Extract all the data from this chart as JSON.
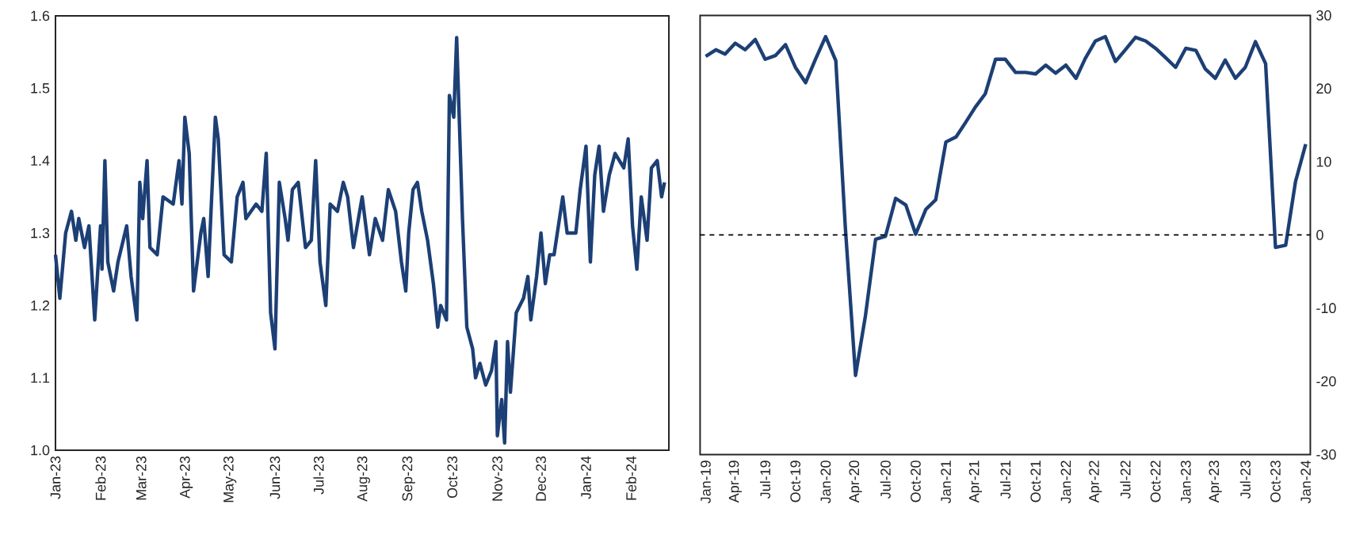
{
  "chart_data": [
    {
      "type": "line",
      "color": "#1c3f75",
      "x": [
        "2023-01-01",
        "2023-01-04",
        "2023-01-08",
        "2023-01-12",
        "2023-01-15",
        "2023-01-17",
        "2023-01-21",
        "2023-01-24",
        "2023-01-28",
        "2023-02-01",
        "2023-02-02",
        "2023-02-04",
        "2023-02-06",
        "2023-02-10",
        "2023-02-13",
        "2023-02-19",
        "2023-02-22",
        "2023-02-26",
        "2023-02-28",
        "2023-03-02",
        "2023-03-05",
        "2023-03-07",
        "2023-03-12",
        "2023-03-16",
        "2023-03-23",
        "2023-03-27",
        "2023-03-29",
        "2023-03-31",
        "2023-04-03",
        "2023-04-06",
        "2023-04-11",
        "2023-04-13",
        "2023-04-16",
        "2023-04-18",
        "2023-04-21",
        "2023-04-23",
        "2023-04-27",
        "2023-05-02",
        "2023-05-06",
        "2023-05-10",
        "2023-05-12",
        "2023-05-19",
        "2023-05-23",
        "2023-05-26",
        "2023-05-29",
        "2023-06-01",
        "2023-06-04",
        "2023-06-08",
        "2023-06-10",
        "2023-06-13",
        "2023-06-17",
        "2023-06-22",
        "2023-06-26",
        "2023-06-29",
        "2023-07-02",
        "2023-07-06",
        "2023-07-09",
        "2023-07-14",
        "2023-07-18",
        "2023-07-21",
        "2023-07-25",
        "2023-07-31",
        "2023-08-05",
        "2023-08-09",
        "2023-08-14",
        "2023-08-18",
        "2023-08-23",
        "2023-08-27",
        "2023-08-30",
        "2023-09-01",
        "2023-09-04",
        "2023-09-07",
        "2023-09-10",
        "2023-09-14",
        "2023-09-18",
        "2023-09-21",
        "2023-09-23",
        "2023-09-27",
        "2023-09-29",
        "2023-10-02",
        "2023-10-04",
        "2023-10-08",
        "2023-10-11",
        "2023-10-15",
        "2023-10-17",
        "2023-10-20",
        "2023-10-24",
        "2023-10-28",
        "2023-10-31",
        "2023-11-01",
        "2023-11-04",
        "2023-11-06",
        "2023-11-08",
        "2023-11-10",
        "2023-11-14",
        "2023-11-19",
        "2023-11-22",
        "2023-11-24",
        "2023-11-28",
        "2023-12-01",
        "2023-12-04",
        "2023-12-07",
        "2023-12-10",
        "2023-12-16",
        "2023-12-19",
        "2023-12-25",
        "2023-12-28",
        "2024-01-01",
        "2024-01-04",
        "2024-01-07",
        "2024-01-10",
        "2024-01-13",
        "2024-01-17",
        "2024-01-21",
        "2024-01-27",
        "2024-01-30",
        "2024-02-02",
        "2024-02-05",
        "2024-02-08",
        "2024-02-12",
        "2024-02-15",
        "2024-02-19",
        "2024-02-22",
        "2024-02-24"
      ],
      "values": [
        1.27,
        1.21,
        1.3,
        1.33,
        1.29,
        1.32,
        1.28,
        1.31,
        1.18,
        1.31,
        1.25,
        1.4,
        1.26,
        1.22,
        1.26,
        1.31,
        1.24,
        1.18,
        1.37,
        1.32,
        1.4,
        1.28,
        1.27,
        1.35,
        1.34,
        1.4,
        1.34,
        1.46,
        1.41,
        1.22,
        1.3,
        1.32,
        1.24,
        1.33,
        1.46,
        1.43,
        1.27,
        1.26,
        1.35,
        1.37,
        1.32,
        1.34,
        1.33,
        1.41,
        1.19,
        1.14,
        1.37,
        1.32,
        1.29,
        1.36,
        1.37,
        1.28,
        1.29,
        1.4,
        1.26,
        1.2,
        1.34,
        1.33,
        1.37,
        1.35,
        1.28,
        1.35,
        1.27,
        1.32,
        1.29,
        1.36,
        1.33,
        1.26,
        1.22,
        1.3,
        1.36,
        1.37,
        1.33,
        1.29,
        1.23,
        1.17,
        1.2,
        1.18,
        1.49,
        1.46,
        1.57,
        1.32,
        1.17,
        1.14,
        1.1,
        1.12,
        1.09,
        1.11,
        1.15,
        1.02,
        1.07,
        1.01,
        1.15,
        1.08,
        1.19,
        1.21,
        1.24,
        1.18,
        1.24,
        1.3,
        1.23,
        1.27,
        1.27,
        1.35,
        1.3,
        1.3,
        1.36,
        1.42,
        1.26,
        1.38,
        1.42,
        1.33,
        1.38,
        1.41,
        1.39,
        1.43,
        1.31,
        1.25,
        1.35,
        1.29,
        1.39,
        1.4,
        1.35,
        1.37
      ],
      "xlim": [
        "2023-01-01",
        "2024-02-27"
      ],
      "ylim": [
        1.0,
        1.6
      ],
      "yticks": [
        {
          "value": 1.0,
          "label": "1.0"
        },
        1.1,
        1.2,
        1.3,
        1.4,
        1.5,
        1.6
      ],
      "xticks": [
        {
          "value": "2023-01-01",
          "label": "Jan-23"
        },
        {
          "value": "2023-02-01",
          "label": "Feb-23"
        },
        {
          "value": "2023-03-01",
          "label": "Mar-23"
        },
        {
          "value": "2023-04-01",
          "label": "Apr-23"
        },
        {
          "value": "2023-05-01",
          "label": "May-23"
        },
        {
          "value": "2023-06-01",
          "label": "Jun-23"
        },
        {
          "value": "2023-07-01",
          "label": "Jul-23"
        },
        {
          "value": "2023-08-01",
          "label": "Aug-23"
        },
        {
          "value": "2023-09-01",
          "label": "Sep-23"
        },
        {
          "value": "2023-10-01",
          "label": "Oct-23"
        },
        {
          "value": "2023-11-01",
          "label": "Nov-23"
        },
        {
          "value": "2023-12-01",
          "label": "Dec-23"
        },
        {
          "value": "2024-01-01",
          "label": "Jan-24"
        },
        {
          "value": "2024-02-01",
          "label": "Feb-24"
        }
      ]
    },
    {
      "type": "line",
      "x": [
        "2019-01",
        "2019-02",
        "2019-03",
        "2019-04",
        "2019-05",
        "2019-06",
        "2019-07",
        "2019-08",
        "2019-09",
        "2019-10",
        "2019-11",
        "2019-12",
        "2020-01",
        "2020-02",
        "2020-03",
        "2020-04",
        "2020-05",
        "2020-06",
        "2020-07",
        "2020-08",
        "2020-09",
        "2020-10",
        "2020-11",
        "2020-12",
        "2021-01",
        "2021-02",
        "2021-03",
        "2021-04",
        "2021-05",
        "2021-06",
        "2021-07",
        "2021-08",
        "2021-09",
        "2021-10",
        "2021-11",
        "2021-12",
        "2022-01",
        "2022-02",
        "2022-03",
        "2022-04",
        "2022-05",
        "2022-06",
        "2022-07",
        "2022-08",
        "2022-09",
        "2022-10",
        "2022-11",
        "2022-12",
        "2023-01",
        "2023-02",
        "2023-03",
        "2023-04",
        "2023-05",
        "2023-06",
        "2023-07",
        "2023-08",
        "2023-09",
        "2023-10",
        "2023-11",
        "2023-12",
        "2024-01"
      ],
      "series": [
        {
          "color": "#1c3f75",
          "axis": "y2",
          "values": [
            24.4,
            25.3,
            24.7,
            26.2,
            25.3,
            26.7,
            24.0,
            24.5,
            26.0,
            22.9,
            20.8,
            24.0,
            27.1,
            23.8,
            1,
            -19.2,
            -11.1,
            -0.6,
            -0.2,
            5.0,
            4.1,
            0.1,
            3.5,
            4.8,
            12.7,
            13.4,
            15.3,
            17.5,
            19.3,
            24.0,
            24.0,
            22.2,
            22.2,
            22.0,
            23.2,
            22.1,
            23.2,
            21.4,
            24.1,
            26.5,
            27.1,
            23.7,
            25.3,
            27.0,
            26.5,
            25.5,
            24.2,
            22.9,
            25.5,
            25.2,
            22.7,
            21.4,
            23.9,
            21.4,
            22.9,
            26.4,
            23.4,
            -1.7,
            -1.4,
            7.3,
            12.4
          ]
        }
      ],
      "xlim": [
        "2018-12-15",
        "2024-01-15"
      ],
      "y2lim": [
        -30,
        30
      ],
      "y2ticks": [
        -30,
        -20,
        -10,
        0,
        10,
        20,
        30
      ],
      "xticks": [
        {
          "value": "2019-01",
          "label": "Jan-19"
        },
        {
          "value": "2019-04",
          "label": "Apr-19"
        },
        {
          "value": "2019-07",
          "label": "Jul-19"
        },
        {
          "value": "2019-10",
          "label": "Oct-19"
        },
        {
          "value": "2020-01",
          "label": "Jan-20"
        },
        {
          "value": "2020-04",
          "label": "Apr-20"
        },
        {
          "value": "2020-07",
          "label": "Jul-20"
        },
        {
          "value": "2020-10",
          "label": "Oct-20"
        },
        {
          "value": "2021-01",
          "label": "Jan-21"
        },
        {
          "value": "2021-04",
          "label": "Apr-21"
        },
        {
          "value": "2021-07",
          "label": "Jul-21"
        },
        {
          "value": "2021-10",
          "label": "Oct-21"
        },
        {
          "value": "2022-01",
          "label": "Jan-22"
        },
        {
          "value": "2022-04",
          "label": "Apr-22"
        },
        {
          "value": "2022-07",
          "label": "Jul-22"
        },
        {
          "value": "2022-10",
          "label": "Oct-22"
        },
        {
          "value": "2023-01",
          "label": "Jan-23"
        },
        {
          "value": "2023-04",
          "label": "Apr-23"
        },
        {
          "value": "2023-07",
          "label": "Jul-23"
        },
        {
          "value": "2023-10",
          "label": "Oct-23"
        },
        {
          "value": "2024-01",
          "label": "Jan-24"
        }
      ],
      "ref_lines": [
        {
          "axis": "y2",
          "value": 0,
          "line_style": "dashed",
          "color": "#000000"
        }
      ]
    }
  ]
}
